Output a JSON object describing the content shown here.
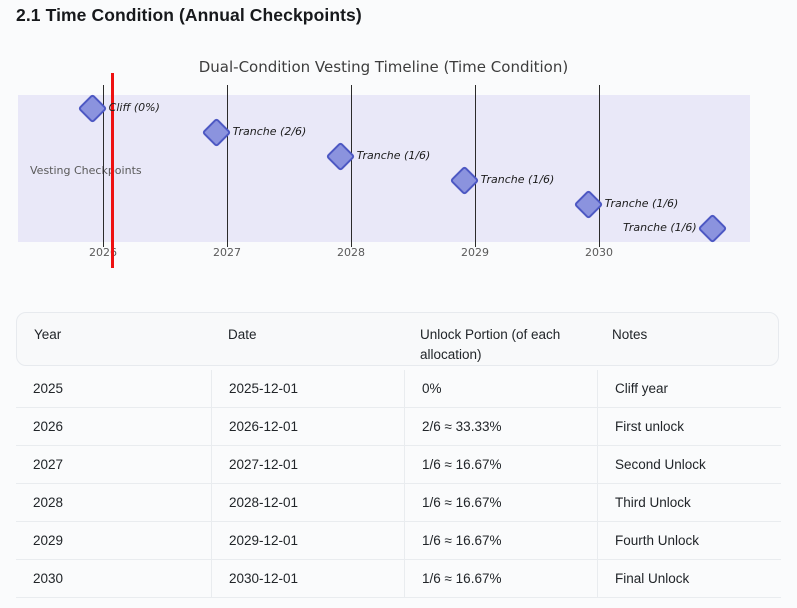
{
  "page": {
    "title": "2.1 Time Condition (Annual Checkpoints)"
  },
  "chart_data": {
    "type": "scatter",
    "title": "Dual-Condition Vesting Timeline (Time Condition)",
    "ylabel": "Vesting Checkpoints",
    "x_ticks": [
      "2026",
      "2027",
      "2028",
      "2029",
      "2030"
    ],
    "x_range_years": [
      2025.33,
      2031.22
    ],
    "grid": "vertical-event-lines",
    "points": [
      {
        "date": "2025-12-01",
        "label": "Cliff (0%)",
        "label_side": "right"
      },
      {
        "date": "2026-12-01",
        "label": "Tranche (2/6)",
        "label_side": "right"
      },
      {
        "date": "2027-12-01",
        "label": "Tranche (1/6)",
        "label_side": "right"
      },
      {
        "date": "2028-12-01",
        "label": "Tranche (1/6)",
        "label_side": "right"
      },
      {
        "date": "2029-12-01",
        "label": "Tranche (1/6)",
        "label_side": "right"
      },
      {
        "date": "2030-12-01",
        "label": "Tranche (1/6)",
        "label_side": "left"
      }
    ],
    "reference_line": {
      "x_year": 2026.08,
      "color": "#ee1111"
    },
    "colors": {
      "marker_fill": "#8b93de",
      "marker_border": "#4d58c3",
      "band_background": "#e9e8f8",
      "gridline": "#2b2b2b"
    }
  },
  "table": {
    "columns": [
      "Year",
      "Date",
      "Unlock Portion (of each allocation)",
      "Notes"
    ],
    "rows": [
      [
        "2025",
        "2025-12-01",
        "0%",
        "Cliff year"
      ],
      [
        "2026",
        "2026-12-01",
        "2/6 ≈ 33.33%",
        "First unlock"
      ],
      [
        "2027",
        "2027-12-01",
        "1/6 ≈ 16.67%",
        "Second Unlock"
      ],
      [
        "2028",
        "2028-12-01",
        "1/6 ≈ 16.67%",
        "Third Unlock"
      ],
      [
        "2029",
        "2029-12-01",
        "1/6 ≈ 16.67%",
        "Fourth Unlock"
      ],
      [
        "2030",
        "2030-12-01",
        "1/6 ≈ 16.67%",
        "Final Unlock"
      ]
    ]
  }
}
